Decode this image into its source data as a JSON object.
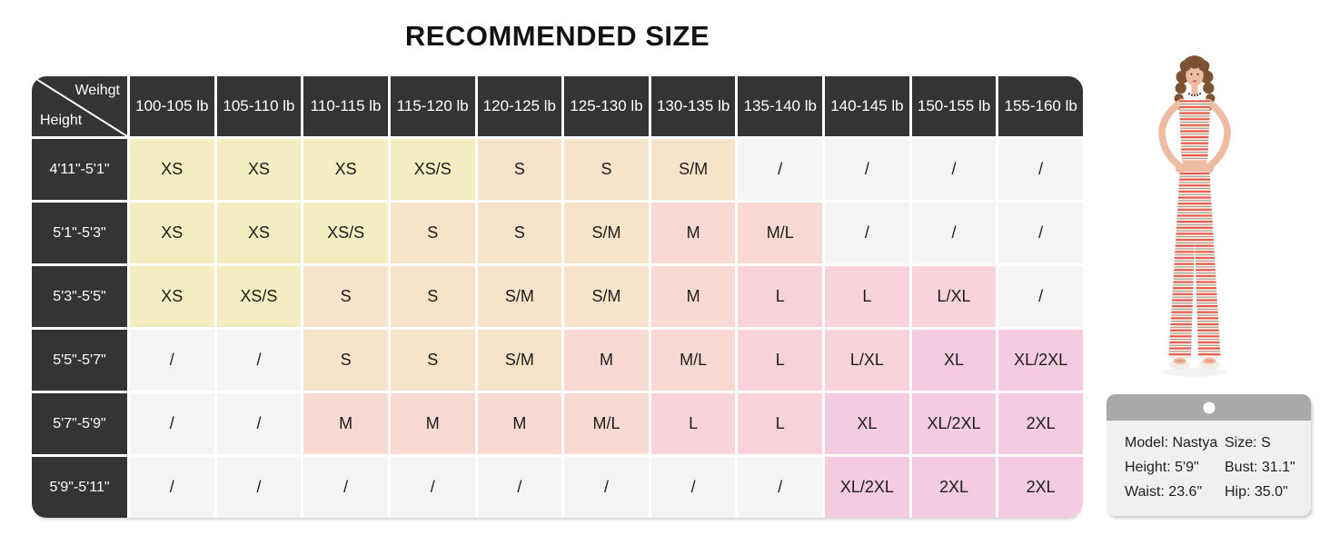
{
  "title": "RECOMMENDED SIZE",
  "chart_data": {
    "type": "table",
    "title": "RECOMMENDED SIZE",
    "corner": {
      "top": "Weihgt",
      "bottom": "Height"
    },
    "columns": [
      "100-105 lb",
      "105-110 lb",
      "110-115 lb",
      "115-120 lb",
      "120-125 lb",
      "125-130 lb",
      "130-135 lb",
      "135-140 lb",
      "140-145 lb",
      "150-155 lb",
      "155-160 lb"
    ],
    "rows": [
      {
        "height": "4'11\"-5'1\"",
        "cells": [
          "XS",
          "XS",
          "XS",
          "XS/S",
          "S",
          "S",
          "S/M",
          "/",
          "/",
          "/",
          "/"
        ]
      },
      {
        "height": "5'1\"-5'3\"",
        "cells": [
          "XS",
          "XS",
          "XS/S",
          "S",
          "S",
          "S/M",
          "M",
          "M/L",
          "/",
          "/",
          "/"
        ]
      },
      {
        "height": "5'3\"-5'5\"",
        "cells": [
          "XS",
          "XS/S",
          "S",
          "S",
          "S/M",
          "S/M",
          "M",
          "L",
          "L",
          "L/XL",
          "/"
        ]
      },
      {
        "height": "5'5\"-5'7\"",
        "cells": [
          "/",
          "/",
          "S",
          "S",
          "S/M",
          "M",
          "M/L",
          "L",
          "L/XL",
          "XL",
          "XL/2XL"
        ]
      },
      {
        "height": "5'7\"-5'9\"",
        "cells": [
          "/",
          "/",
          "M",
          "M",
          "M",
          "M/L",
          "L",
          "L",
          "XL",
          "XL/2XL",
          "2XL"
        ]
      },
      {
        "height": "5'9\"-5'11\"",
        "cells": [
          "/",
          "/",
          "/",
          "/",
          "/",
          "/",
          "/",
          "/",
          "XL/2XL",
          "2XL",
          "2XL"
        ]
      }
    ],
    "size_color_map": {
      "XS": "yellow",
      "XS/S": "yellow",
      "S": "peach",
      "S/M": "peach",
      "M": "salmon",
      "M/L": "salmon",
      "L": "pink",
      "L/XL": "pink",
      "XL": "magenta",
      "XL/2XL": "magenta",
      "2XL": "magenta",
      "/": "gray"
    },
    "palette": {
      "yellow": "#f5edc2",
      "peach": "#f7e3c9",
      "salmon": "#f8d9d3",
      "pink": "#f8d3dc",
      "magenta": "#f5cbe2",
      "gray": "#f4f4f4",
      "header_bg": "#343434",
      "header_text": "#ffffff",
      "cell_text": "#1c1c1c"
    }
  },
  "model_card": {
    "lines": [
      {
        "left": "Model: Nastya",
        "right": "Size: S"
      },
      {
        "left": "Height: 5'9\"",
        "right": "Bust: 31.1\""
      },
      {
        "left": "Waist: 23.6\"",
        "right": "Hip: 35.0\""
      }
    ]
  },
  "model_photo": {
    "description": "model wearing red-white striped tube top and pants"
  }
}
